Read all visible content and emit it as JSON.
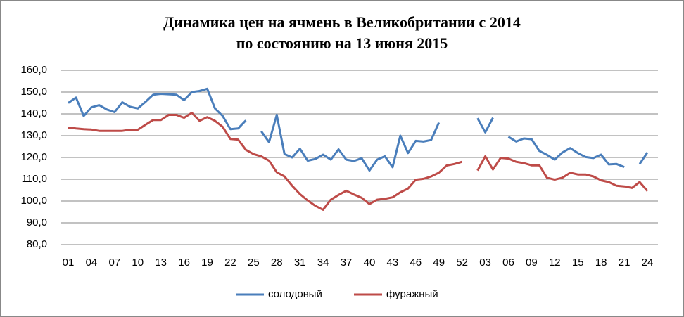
{
  "chart_data": {
    "type": "line",
    "title": "Динамика цен на ячмень в Великобритании с 2014",
    "subtitle": "по состоянию на 13 июня 2015",
    "categories": [
      "01",
      null,
      null,
      "04",
      null,
      null,
      "07",
      null,
      null,
      "10",
      null,
      null,
      "13",
      null,
      null,
      "16",
      null,
      null,
      "19",
      null,
      null,
      "22",
      null,
      null,
      "25",
      null,
      null,
      "28",
      null,
      null,
      "31",
      null,
      null,
      "34",
      null,
      null,
      "37",
      null,
      null,
      "40",
      null,
      null,
      "43",
      null,
      null,
      "46",
      null,
      null,
      "49",
      null,
      null,
      "52",
      null,
      null,
      "03",
      null,
      null,
      "06",
      null,
      null,
      "09",
      null,
      null,
      "12",
      null,
      null,
      "15",
      null,
      null,
      "18",
      null,
      null,
      "21",
      null,
      null,
      "24"
    ],
    "series": [
      {
        "name": "солодовый",
        "color": "#4a7ebb",
        "values": [
          145,
          147.5,
          139,
          143,
          144,
          142,
          140.8,
          145.3,
          143.3,
          142.5,
          145.5,
          148.8,
          149.2,
          149,
          148.8,
          146.3,
          150,
          150.5,
          151.5,
          142.5,
          139,
          133,
          133.3,
          137,
          null,
          132,
          127,
          139.5,
          121.5,
          120,
          124,
          118.5,
          119.3,
          121.3,
          119,
          123.7,
          119,
          118.4,
          119.6,
          114,
          119,
          120.5,
          115.5,
          130,
          122,
          127.6,
          127.3,
          128,
          136,
          null,
          null,
          null,
          null,
          138,
          131.5,
          138.2,
          null,
          129.5,
          127.3,
          128.7,
          128.4,
          123,
          121.2,
          119,
          122.3,
          124.3,
          122,
          120.2,
          119.7,
          121.3,
          116.8,
          117,
          115.6,
          null,
          117,
          122.3
        ]
      },
      {
        "name": "фуражный",
        "color": "#be4b48",
        "values": [
          133.7,
          133.3,
          133,
          132.8,
          132.2,
          132.2,
          132.2,
          132.2,
          132.7,
          132.7,
          135,
          137.2,
          137.2,
          139.5,
          139.5,
          138.2,
          140.5,
          136.8,
          138.5,
          136.8,
          134,
          128.5,
          128.2,
          123.5,
          121.5,
          120.5,
          118.5,
          113.2,
          111.3,
          107,
          103.2,
          100.3,
          97.8,
          96,
          100.6,
          102.8,
          104.7,
          103,
          101.5,
          98.6,
          100.6,
          101,
          101.7,
          104,
          105.7,
          109.8,
          110.2,
          111.3,
          113,
          116.3,
          117,
          118,
          null,
          114,
          120.5,
          114.5,
          119.8,
          119.5,
          118,
          117.4,
          116.4,
          116.4,
          110.7,
          109.8,
          110.7,
          113,
          112.2,
          112.2,
          111.3,
          109.5,
          108.7,
          107,
          106.7,
          106,
          108.7,
          104.6
        ]
      }
    ],
    "ylim": [
      80,
      160
    ],
    "yticks": [
      {
        "value": 80,
        "label": "80,0"
      },
      {
        "value": 90,
        "label": "90,0"
      },
      {
        "value": 100,
        "label": "100,0"
      },
      {
        "value": 110,
        "label": "110,0"
      },
      {
        "value": 120,
        "label": "120,0"
      },
      {
        "value": 130,
        "label": "130,0"
      },
      {
        "value": 140,
        "label": "140,0"
      },
      {
        "value": 150,
        "label": "150,0"
      },
      {
        "value": 160,
        "label": "160,0"
      }
    ],
    "grid": true,
    "legend": "bottom"
  }
}
